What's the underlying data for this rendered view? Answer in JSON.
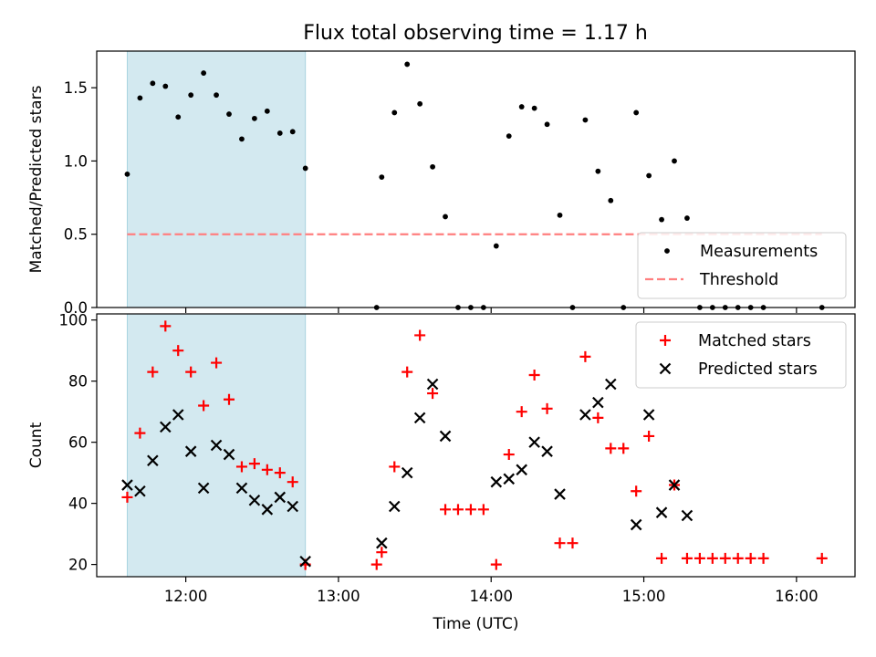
{
  "title": "Flux total observing time = 1.17 h",
  "chart_data": [
    {
      "type": "scatter",
      "ylabel": "Matched/Predicted stars",
      "xlabel": "",
      "xlim": [
        "11:25",
        "16:23"
      ],
      "ylim": [
        0,
        1.75
      ],
      "yticks": [
        0.0,
        0.5,
        1.0,
        1.5
      ],
      "ytick_labels": [
        "0.0",
        "0.5",
        "1.0",
        "1.5"
      ],
      "xticks": [
        "12:00",
        "13:00",
        "14:00",
        "15:00",
        "16:00"
      ],
      "shaded_span": {
        "start": "11:37",
        "end": "12:47",
        "color": "#d3e9f0"
      },
      "grid": false,
      "legend": {
        "position": "lower-right",
        "entries": [
          "Measurements",
          "Threshold"
        ]
      },
      "threshold": {
        "name": "Threshold",
        "value": 0.5,
        "start": "11:37",
        "end": "16:10",
        "color": "#ff7f7f"
      },
      "series": [
        {
          "name": "Measurements",
          "marker": "dot",
          "color": "#000000",
          "points": [
            [
              "11:37",
              0.91
            ],
            [
              "11:42",
              1.43
            ],
            [
              "11:47",
              1.53
            ],
            [
              "11:52",
              1.51
            ],
            [
              "11:57",
              1.3
            ],
            [
              "12:02",
              1.45
            ],
            [
              "12:07",
              1.6
            ],
            [
              "12:12",
              1.45
            ],
            [
              "12:17",
              1.32
            ],
            [
              "12:22",
              1.15
            ],
            [
              "12:27",
              1.29
            ],
            [
              "12:32",
              1.34
            ],
            [
              "12:37",
              1.19
            ],
            [
              "12:42",
              1.2
            ],
            [
              "12:47",
              0.95
            ],
            [
              "13:15",
              0.0
            ],
            [
              "13:17",
              0.89
            ],
            [
              "13:22",
              1.33
            ],
            [
              "13:27",
              1.66
            ],
            [
              "13:32",
              1.39
            ],
            [
              "13:37",
              0.96
            ],
            [
              "13:42",
              0.62
            ],
            [
              "13:47",
              0.0
            ],
            [
              "13:52",
              0.0
            ],
            [
              "13:57",
              0.0
            ],
            [
              "14:02",
              0.42
            ],
            [
              "14:07",
              1.17
            ],
            [
              "14:12",
              1.37
            ],
            [
              "14:17",
              1.36
            ],
            [
              "14:22",
              1.25
            ],
            [
              "14:27",
              0.63
            ],
            [
              "14:32",
              0.0
            ],
            [
              "14:37",
              1.28
            ],
            [
              "14:42",
              0.93
            ],
            [
              "14:47",
              0.73
            ],
            [
              "14:52",
              0.0
            ],
            [
              "14:57",
              1.33
            ],
            [
              "15:02",
              0.9
            ],
            [
              "15:07",
              0.6
            ],
            [
              "15:12",
              1.0
            ],
            [
              "15:17",
              0.61
            ],
            [
              "15:22",
              0.0
            ],
            [
              "15:27",
              0.0
            ],
            [
              "15:32",
              0.0
            ],
            [
              "15:37",
              0.0
            ],
            [
              "15:42",
              0.0
            ],
            [
              "15:47",
              0.0
            ],
            [
              "16:10",
              0.0
            ]
          ]
        }
      ]
    },
    {
      "type": "scatter",
      "ylabel": "Count",
      "xlabel": "Time (UTC)",
      "xlim": [
        "11:25",
        "16:23"
      ],
      "ylim": [
        16,
        102
      ],
      "yticks": [
        20,
        40,
        60,
        80,
        100
      ],
      "ytick_labels": [
        "20",
        "40",
        "60",
        "80",
        "100"
      ],
      "xticks": [
        "12:00",
        "13:00",
        "14:00",
        "15:00",
        "16:00"
      ],
      "xtick_labels": [
        "12:00",
        "13:00",
        "14:00",
        "15:00",
        "16:00"
      ],
      "shaded_span": {
        "start": "11:37",
        "end": "12:47",
        "color": "#d3e9f0"
      },
      "grid": false,
      "legend": {
        "position": "top-right",
        "entries": [
          "Matched stars",
          "Predicted stars"
        ]
      },
      "series": [
        {
          "name": "Matched stars",
          "marker": "plus",
          "color": "#ff0000",
          "points": [
            [
              "11:37",
              42
            ],
            [
              "11:42",
              63
            ],
            [
              "11:47",
              83
            ],
            [
              "11:52",
              98
            ],
            [
              "11:57",
              90
            ],
            [
              "12:02",
              83
            ],
            [
              "12:07",
              72
            ],
            [
              "12:12",
              86
            ],
            [
              "12:17",
              74
            ],
            [
              "12:22",
              52
            ],
            [
              "12:27",
              53
            ],
            [
              "12:32",
              51
            ],
            [
              "12:37",
              50
            ],
            [
              "12:42",
              47
            ],
            [
              "12:47",
              20
            ],
            [
              "13:15",
              20
            ],
            [
              "13:17",
              24
            ],
            [
              "13:22",
              52
            ],
            [
              "13:27",
              83
            ],
            [
              "13:32",
              95
            ],
            [
              "13:37",
              76
            ],
            [
              "13:42",
              38
            ],
            [
              "13:47",
              38
            ],
            [
              "13:52",
              38
            ],
            [
              "13:57",
              38
            ],
            [
              "14:02",
              20
            ],
            [
              "14:07",
              56
            ],
            [
              "14:12",
              70
            ],
            [
              "14:17",
              82
            ],
            [
              "14:22",
              71
            ],
            [
              "14:27",
              27
            ],
            [
              "14:32",
              27
            ],
            [
              "14:37",
              88
            ],
            [
              "14:42",
              68
            ],
            [
              "14:47",
              58
            ],
            [
              "14:52",
              58
            ],
            [
              "14:57",
              44
            ],
            [
              "15:02",
              62
            ],
            [
              "15:07",
              22
            ],
            [
              "15:12",
              46
            ],
            [
              "15:17",
              22
            ],
            [
              "15:22",
              22
            ],
            [
              "15:27",
              22
            ],
            [
              "15:32",
              22
            ],
            [
              "15:37",
              22
            ],
            [
              "15:42",
              22
            ],
            [
              "15:47",
              22
            ],
            [
              "16:10",
              22
            ]
          ]
        },
        {
          "name": "Predicted stars",
          "marker": "x",
          "color": "#000000",
          "points": [
            [
              "11:37",
              46
            ],
            [
              "11:42",
              44
            ],
            [
              "11:47",
              54
            ],
            [
              "11:52",
              65
            ],
            [
              "11:57",
              69
            ],
            [
              "12:02",
              57
            ],
            [
              "12:07",
              45
            ],
            [
              "12:12",
              59
            ],
            [
              "12:17",
              56
            ],
            [
              "12:22",
              45
            ],
            [
              "12:27",
              41
            ],
            [
              "12:32",
              38
            ],
            [
              "12:37",
              42
            ],
            [
              "12:42",
              39
            ],
            [
              "12:47",
              21
            ],
            [
              "13:17",
              27
            ],
            [
              "13:22",
              39
            ],
            [
              "13:27",
              50
            ],
            [
              "13:32",
              68
            ],
            [
              "13:37",
              79
            ],
            [
              "13:42",
              62
            ],
            [
              "14:02",
              47
            ],
            [
              "14:07",
              48
            ],
            [
              "14:12",
              51
            ],
            [
              "14:17",
              60
            ],
            [
              "14:22",
              57
            ],
            [
              "14:27",
              43
            ],
            [
              "14:37",
              69
            ],
            [
              "14:42",
              73
            ],
            [
              "14:47",
              79
            ],
            [
              "14:57",
              33
            ],
            [
              "15:02",
              69
            ],
            [
              "15:07",
              37
            ],
            [
              "15:12",
              46
            ],
            [
              "15:17",
              36
            ]
          ]
        }
      ]
    }
  ]
}
